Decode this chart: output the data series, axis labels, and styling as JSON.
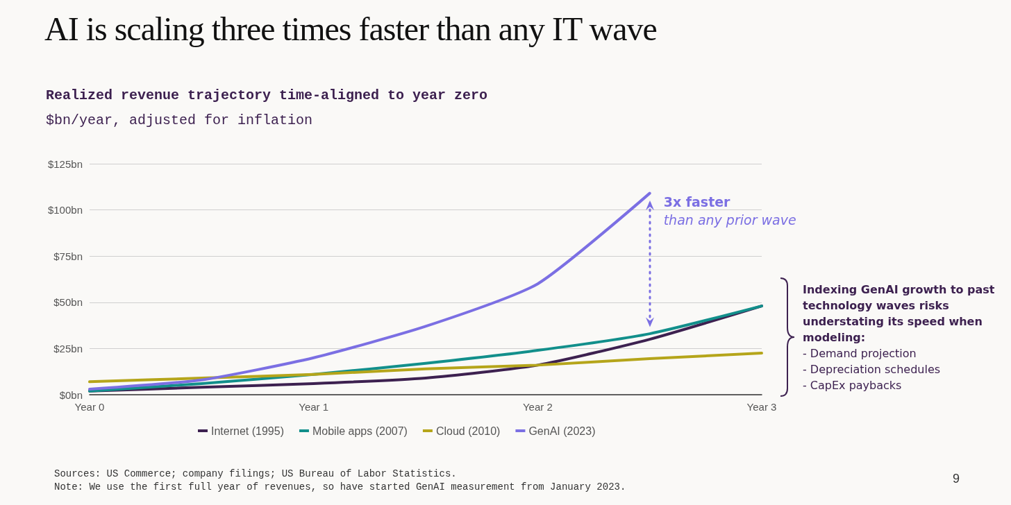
{
  "chart_data": {
    "type": "line",
    "title": "AI is scaling three times faster than any IT wave",
    "subtitle": "Realized revenue trajectory time-aligned to year zero",
    "ylabel": "$bn/year, adjusted for inflation",
    "categories": [
      "Year 0",
      null,
      "Year 1",
      null,
      "Year 2",
      null,
      "Year 3"
    ],
    "series": [
      {
        "name": "Internet (1995)",
        "color": "#3d2150",
        "values": [
          2,
          4,
          6,
          9,
          16,
          30,
          48
        ]
      },
      {
        "name": "Mobile apps (2007)",
        "color": "#128f8b",
        "values": [
          2,
          6,
          11,
          17,
          24,
          33,
          48
        ]
      },
      {
        "name": "Cloud (2010)",
        "color": "#b5a51a",
        "values": [
          7,
          9,
          11,
          14,
          16,
          19.5,
          22.5
        ]
      },
      {
        "name": "GenAI (2023)",
        "color": "#7b6fe3",
        "values": [
          3,
          8,
          20,
          37,
          60,
          109,
          null
        ]
      }
    ],
    "ylim": [
      0,
      125
    ],
    "yticks": [
      {
        "value": 0,
        "label": "$0bn"
      },
      {
        "value": 25,
        "label": "$25bn"
      },
      {
        "value": 50,
        "label": "$50bn"
      },
      {
        "value": 75,
        "label": "$75bn"
      },
      {
        "value": 100,
        "label": "$100bn"
      },
      {
        "value": 125,
        "label": "$125bn"
      }
    ],
    "annotations": [
      "3x faster",
      "than any prior wave",
      "Indexing GenAI growth to past technology waves risks understating its speed when modeling:",
      "-  Demand projection",
      "-  Depreciation schedules",
      "-  CapEx paybacks",
      "Sources: US Commerce; company filings; US Bureau of Labor Statistics.",
      "Note: We use the first full year of revenues, so have started GenAI measurement from January 2023.",
      "9"
    ],
    "grid": "y",
    "legend": "bottom",
    "marker": "none",
    "line_style": "solid"
  }
}
